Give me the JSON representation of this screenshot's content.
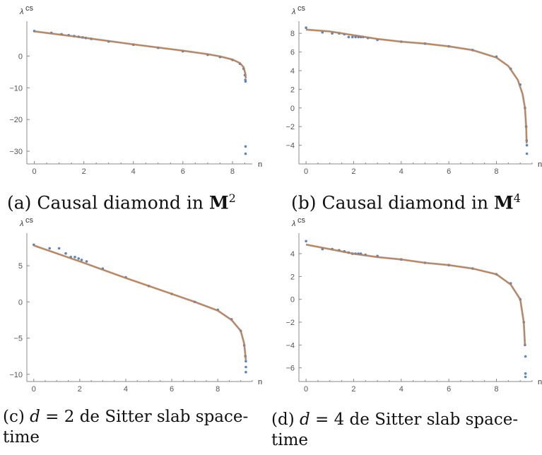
{
  "chart_data": [
    {
      "type": "scatter",
      "panel": "a",
      "ylabel": "λ",
      "ylabel_sup": "cs",
      "xlabel": "n",
      "xlim": [
        -0.3,
        8.8
      ],
      "ylim": [
        -34,
        11
      ],
      "xticks": [
        0,
        2,
        4,
        6,
        8
      ],
      "yticks": [
        0,
        -10,
        -20,
        -30
      ],
      "ytick_labels": [
        "0",
        "−10",
        "−20",
        "−30"
      ],
      "colors": {
        "points": "#5b84c4",
        "fit": "#e07b1a"
      },
      "series": [
        {
          "points": [
            [
              0,
              7.9
            ],
            [
              0.69,
              7.3
            ],
            [
              1.1,
              6.9
            ],
            [
              1.39,
              6.6
            ],
            [
              1.61,
              6.3
            ],
            [
              1.79,
              6.1
            ],
            [
              1.95,
              5.9
            ],
            [
              2.08,
              5.7
            ],
            [
              2.3,
              5.4
            ],
            [
              3.0,
              4.6
            ],
            [
              4.0,
              3.6
            ],
            [
              5.0,
              2.6
            ],
            [
              6.0,
              1.5
            ],
            [
              7.0,
              0.4
            ],
            [
              7.5,
              -0.3
            ],
            [
              8.0,
              -1.2
            ],
            [
              8.3,
              -2.4
            ],
            [
              8.45,
              -4.0
            ],
            [
              8.5,
              -6.0
            ],
            [
              8.52,
              -7.5
            ],
            [
              8.53,
              -8.0
            ],
            [
              8.53,
              -28.5
            ],
            [
              8.53,
              -30.8
            ]
          ]
        },
        {
          "line": [
            [
              0,
              7.8
            ],
            [
              2,
              5.8
            ],
            [
              4,
              3.7
            ],
            [
              6,
              1.7
            ],
            [
              7,
              0.6
            ],
            [
              7.5,
              -0.1
            ],
            [
              8.0,
              -1.1
            ],
            [
              8.3,
              -2.2
            ],
            [
              8.45,
              -3.5
            ],
            [
              8.52,
              -5.5
            ],
            [
              8.54,
              -7.0
            ]
          ]
        }
      ]
    },
    {
      "type": "scatter",
      "panel": "b",
      "ylabel": "λ",
      "ylabel_sup": "cs",
      "xlabel": "n",
      "xlim": [
        -0.3,
        9.5
      ],
      "ylim": [
        -6,
        9.3
      ],
      "xticks": [
        0,
        2,
        4,
        6,
        8
      ],
      "yticks": [
        8,
        6,
        4,
        2,
        0,
        -2,
        -4
      ],
      "ytick_labels": [
        "8",
        "6",
        "4",
        "2",
        "0",
        "−2",
        "−4"
      ],
      "colors": {
        "points": "#5b84c4",
        "fit": "#e07b1a"
      },
      "series": [
        {
          "points": [
            [
              0,
              8.6
            ],
            [
              0.69,
              8.1
            ],
            [
              1.1,
              8.0
            ],
            [
              1.39,
              8.0
            ],
            [
              1.61,
              7.9
            ],
            [
              1.79,
              7.6
            ],
            [
              1.95,
              7.6
            ],
            [
              2.08,
              7.6
            ],
            [
              2.2,
              7.6
            ],
            [
              2.3,
              7.6
            ],
            [
              2.4,
              7.6
            ],
            [
              2.6,
              7.5
            ],
            [
              3.0,
              7.3
            ],
            [
              4.0,
              7.1
            ],
            [
              5.0,
              6.9
            ],
            [
              6.0,
              6.6
            ],
            [
              7.0,
              6.2
            ],
            [
              8.0,
              5.5
            ],
            [
              8.6,
              4.2
            ],
            [
              9.0,
              2.5
            ],
            [
              9.2,
              0.0
            ],
            [
              9.25,
              -2.0
            ],
            [
              9.27,
              -3.5
            ],
            [
              9.28,
              -4.0
            ],
            [
              9.28,
              -4.9
            ]
          ]
        },
        {
          "line": [
            [
              0,
              8.4
            ],
            [
              1,
              8.2
            ],
            [
              2,
              7.8
            ],
            [
              3,
              7.4
            ],
            [
              4,
              7.1
            ],
            [
              5,
              6.9
            ],
            [
              6,
              6.6
            ],
            [
              7,
              6.2
            ],
            [
              8,
              5.4
            ],
            [
              8.5,
              4.5
            ],
            [
              8.9,
              3.0
            ],
            [
              9.1,
              1.5
            ],
            [
              9.2,
              0.0
            ],
            [
              9.25,
              -2.0
            ],
            [
              9.27,
              -3.8
            ]
          ]
        }
      ]
    },
    {
      "type": "scatter",
      "panel": "c",
      "ylabel": "λ",
      "ylabel_sup": "cs",
      "xlabel": "n",
      "xlim": [
        -0.3,
        9.5
      ],
      "ylim": [
        -11,
        9.5
      ],
      "xticks": [
        0,
        2,
        4,
        6,
        8
      ],
      "yticks": [
        5,
        0,
        -5,
        -10
      ],
      "ytick_labels": [
        "5",
        "0",
        "−5",
        "−10"
      ],
      "colors": {
        "points": "#5b84c4",
        "fit": "#e07b1a"
      },
      "series": [
        {
          "points": [
            [
              0,
              7.9
            ],
            [
              0.69,
              7.4
            ],
            [
              1.1,
              7.4
            ],
            [
              1.39,
              6.7
            ],
            [
              1.61,
              6.2
            ],
            [
              1.79,
              6.2
            ],
            [
              1.95,
              6.0
            ],
            [
              2.08,
              5.8
            ],
            [
              2.3,
              5.6
            ],
            [
              3.0,
              4.6
            ],
            [
              4.0,
              3.4
            ],
            [
              5.0,
              2.2
            ],
            [
              6.0,
              1.1
            ],
            [
              7.0,
              0.0
            ],
            [
              8.0,
              -1.1
            ],
            [
              8.6,
              -2.4
            ],
            [
              9.0,
              -4.0
            ],
            [
              9.15,
              -6.0
            ],
            [
              9.2,
              -7.5
            ],
            [
              9.22,
              -8.2
            ],
            [
              9.22,
              -9.0
            ],
            [
              9.22,
              -9.7
            ]
          ]
        },
        {
          "line": [
            [
              0,
              7.8
            ],
            [
              2,
              5.6
            ],
            [
              4,
              3.3
            ],
            [
              6,
              1.1
            ],
            [
              7,
              0.0
            ],
            [
              8,
              -1.2
            ],
            [
              8.6,
              -2.5
            ],
            [
              9.0,
              -4.0
            ],
            [
              9.15,
              -5.8
            ],
            [
              9.22,
              -8.0
            ]
          ]
        }
      ]
    },
    {
      "type": "scatter",
      "panel": "d",
      "ylabel": "λ",
      "ylabel_sup": "cs",
      "xlabel": "n",
      "xlim": [
        -0.3,
        9.5
      ],
      "ylim": [
        -7.2,
        5.8
      ],
      "xticks": [
        0,
        2,
        4,
        6,
        8
      ],
      "yticks": [
        4,
        2,
        0,
        -2,
        -4,
        -6
      ],
      "ytick_labels": [
        "4",
        "2",
        "0",
        "−2",
        "−4",
        "−6"
      ],
      "colors": {
        "points": "#5b84c4",
        "fit": "#e07b1a"
      },
      "series": [
        {
          "points": [
            [
              0,
              5.1
            ],
            [
              0.69,
              4.4
            ],
            [
              1.1,
              4.4
            ],
            [
              1.39,
              4.3
            ],
            [
              1.61,
              4.2
            ],
            [
              1.79,
              4.1
            ],
            [
              1.95,
              4.0
            ],
            [
              2.08,
              4.0
            ],
            [
              2.2,
              4.0
            ],
            [
              2.3,
              4.0
            ],
            [
              2.5,
              3.9
            ],
            [
              3.0,
              3.8
            ],
            [
              4.0,
              3.5
            ],
            [
              5.0,
              3.2
            ],
            [
              6.0,
              3.0
            ],
            [
              7.0,
              2.7
            ],
            [
              8.0,
              2.2
            ],
            [
              8.6,
              1.4
            ],
            [
              9.0,
              0.0
            ],
            [
              9.15,
              -2.0
            ],
            [
              9.2,
              -4.0
            ],
            [
              9.22,
              -5.0
            ],
            [
              9.22,
              -6.5
            ],
            [
              9.22,
              -6.8
            ]
          ]
        },
        {
          "line": [
            [
              0,
              4.8
            ],
            [
              1,
              4.4
            ],
            [
              2,
              4.0
            ],
            [
              3,
              3.7
            ],
            [
              4,
              3.5
            ],
            [
              5,
              3.2
            ],
            [
              6,
              3.0
            ],
            [
              7,
              2.7
            ],
            [
              8,
              2.2
            ],
            [
              8.6,
              1.3
            ],
            [
              9.0,
              0.0
            ],
            [
              9.15,
              -2.0
            ],
            [
              9.2,
              -4.0
            ]
          ]
        }
      ]
    }
  ],
  "captions": {
    "a": {
      "prefix": "(a) Causal diamond in ",
      "math": "M",
      "sup": "2"
    },
    "b": {
      "prefix": "(b) Causal diamond in ",
      "math": "M",
      "sup": "4"
    },
    "c": {
      "line1_prefix": "(c) ",
      "var": "d",
      "line1_rest": " = 2 de Sitter slab space-",
      "line2": "time"
    },
    "d": {
      "line1_prefix": "(d) ",
      "var": "d",
      "line1_rest": " = 4 de Sitter slab space-",
      "line2": "time"
    }
  }
}
